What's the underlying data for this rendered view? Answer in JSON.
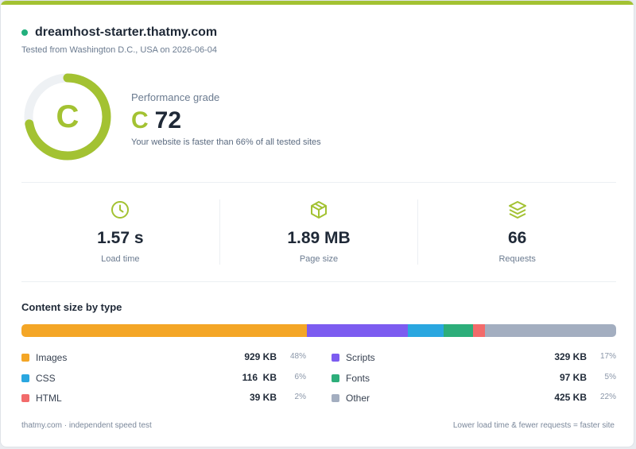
{
  "header": {
    "site": "dreamhost-starter.thatmy.com",
    "tested": "Tested from Washington D.C., USA on 2026-06-04"
  },
  "performance": {
    "label": "Performance grade",
    "grade": "C",
    "score": "72",
    "score_fraction": 0.72,
    "description": "Your website is faster than 66% of all tested sites"
  },
  "stats": [
    {
      "value": "1.57 s",
      "label": "Load time",
      "icon": "clock-icon"
    },
    {
      "value": "1.89 MB",
      "label": "Page size",
      "icon": "box-icon"
    },
    {
      "value": "66",
      "label": "Requests",
      "icon": "layers-icon"
    }
  ],
  "content": {
    "title": "Content size by type",
    "types": [
      {
        "name": "Images",
        "size": "929 KB",
        "pct": "48%",
        "color": "#f4a626"
      },
      {
        "name": "Scripts",
        "size": "329 KB",
        "pct": "17%",
        "color": "#7c5cf0"
      },
      {
        "name": "CSS",
        "size": "116  KB",
        "pct": "6%",
        "color": "#2aa7e0"
      },
      {
        "name": "Fonts",
        "size": "97 KB",
        "pct": "5%",
        "color": "#2dae7a"
      },
      {
        "name": "HTML",
        "size": "39 KB",
        "pct": "2%",
        "color": "#f26b6b"
      },
      {
        "name": "Other",
        "size": "425 KB",
        "pct": "22%",
        "color": "#a3aec0"
      }
    ]
  },
  "footer": {
    "left": "thatmy.com · independent speed test",
    "right": "Lower load time & fewer requests = faster site"
  },
  "colors": {
    "accent": "#a3c232",
    "status": "#22b07d"
  }
}
